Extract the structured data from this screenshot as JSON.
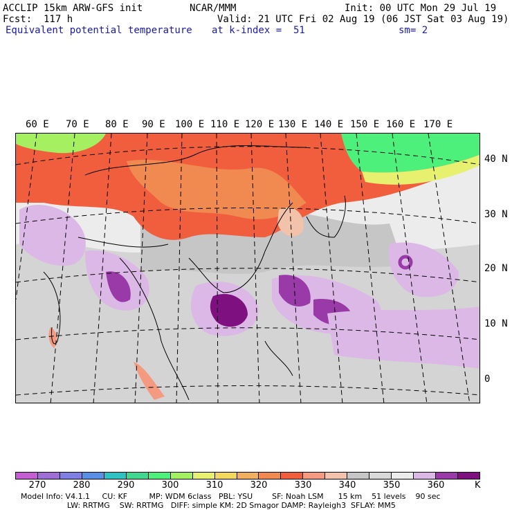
{
  "header": {
    "model": "ACCLIP 15km ARW-GFS init",
    "org": "NCAR/MMM",
    "init": "Init: 00 UTC Mon 29 Jul 19",
    "fcst": "Fcst:  117 h",
    "valid": "Valid: 21 UTC Fri 02 Aug 19 (06 JST Sat 03 Aug 19)",
    "field": "Equivalent potential temperature",
    "level": "at k-index =  51",
    "smooth": "sm= 2"
  },
  "map": {
    "lon_labels": [
      "60 E",
      "70 E",
      "80 E",
      "90 E",
      "100 E",
      "110 E",
      "120 E",
      "130 E",
      "140 E",
      "150 E",
      "160 E",
      "170 E"
    ],
    "lat_labels": [
      "40 N",
      "30 N",
      "20 N",
      "10 N",
      "0"
    ]
  },
  "colorbar": {
    "colors": [
      "#c45ed2",
      "#9e6fd6",
      "#7f7fe6",
      "#5a8fe6",
      "#2ec2c2",
      "#40d890",
      "#4cf07a",
      "#a4f060",
      "#e8f070",
      "#f2d860",
      "#f0b060",
      "#f08a50",
      "#f05e3e",
      "#f49a80",
      "#f2c2aa",
      "#c6c6c6",
      "#d9d9d9",
      "#ececec",
      "#dcb8e6",
      "#9a3aa8",
      "#7e1080"
    ],
    "ticks": [
      "270",
      "280",
      "290",
      "300",
      "310",
      "320",
      "330",
      "340",
      "350",
      "360"
    ],
    "unit": "K"
  },
  "footer": {
    "line1": "Model Info: V4.1.1     CU: KF         MP: WDM 6class   PBL: YSU        SF: Noah LSM      15 km    51 levels    90 sec",
    "line2": "LW: RRTMG    SW: RRTMG   DIFF: simple KM: 2D Smagor DAMP: Rayleigh3  SFLAY: MM5"
  }
}
